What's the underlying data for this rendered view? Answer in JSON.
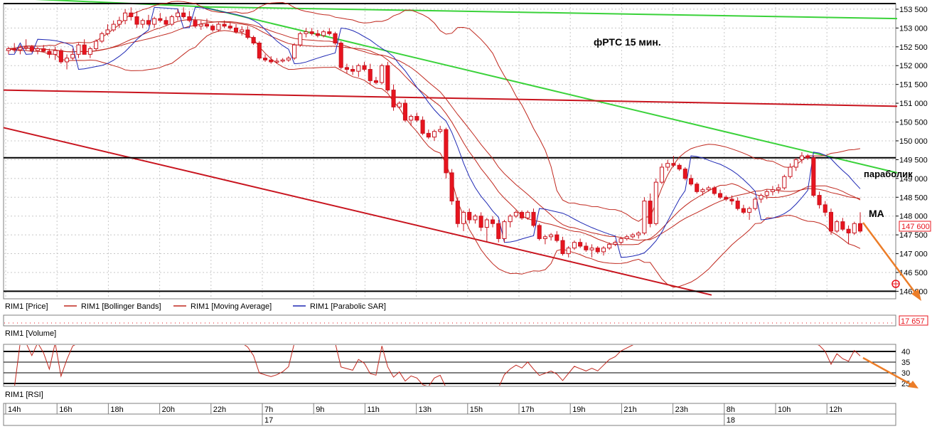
{
  "chart_data": {
    "type": "candlestick",
    "title": "фРТС   15 мин.",
    "price_axis": {
      "ylim": [
        145800,
        153650
      ],
      "ticks": [
        153500,
        153000,
        152500,
        152000,
        151500,
        151000,
        150500,
        150000,
        149500,
        149000,
        148500,
        148000,
        147500,
        147000,
        146500,
        146000
      ],
      "tick_labels": [
        "153 500",
        "153 000",
        "152 500",
        "152 000",
        "151 500",
        "151 000",
        "150 500",
        "150 000",
        "149 500",
        "149 000",
        "148 500",
        "148 000",
        "147 500",
        "147 000",
        "146 500",
        "146 000"
      ],
      "last_price_label": "147 600",
      "last_price": 147600
    },
    "time_axis": {
      "hour_labels": [
        "14h",
        "16h",
        "18h",
        "20h",
        "22h",
        "7h",
        "9h",
        "11h",
        "13h",
        "15h",
        "17h",
        "19h",
        "21h",
        "23h",
        "8h",
        "10h",
        "12h"
      ],
      "day_labels": [
        "17",
        "18"
      ]
    },
    "candles_ohlc": [
      [
        152400,
        152500,
        152300,
        152450
      ],
      [
        152450,
        152600,
        152350,
        152420
      ],
      [
        152420,
        152550,
        152300,
        152480
      ],
      [
        152480,
        152700,
        152400,
        152500
      ],
      [
        152500,
        152550,
        152350,
        152400
      ],
      [
        152400,
        152500,
        152300,
        152450
      ],
      [
        152450,
        152550,
        152350,
        152380
      ],
      [
        152380,
        152450,
        152200,
        152300
      ],
      [
        152300,
        152500,
        152150,
        152400
      ],
      [
        152400,
        152450,
        152050,
        152100
      ],
      [
        152100,
        152300,
        151900,
        152200
      ],
      [
        152200,
        152450,
        152150,
        152300
      ],
      [
        152300,
        152600,
        152200,
        152550
      ],
      [
        152550,
        152700,
        152400,
        152300
      ],
      [
        152300,
        152500,
        152200,
        152450
      ],
      [
        152450,
        152700,
        152400,
        152650
      ],
      [
        152650,
        152900,
        152600,
        152850
      ],
      [
        152850,
        153100,
        152800,
        152950
      ],
      [
        152950,
        153200,
        152900,
        153100
      ],
      [
        153100,
        153300,
        153000,
        153200
      ],
      [
        153200,
        153500,
        153100,
        153400
      ],
      [
        153400,
        153550,
        153200,
        153300
      ],
      [
        153300,
        153450,
        153000,
        153100
      ],
      [
        153100,
        153250,
        153000,
        153200
      ],
      [
        153200,
        153350,
        153050,
        153100
      ],
      [
        153100,
        153300,
        153000,
        153250
      ],
      [
        153250,
        153400,
        153150,
        153200
      ],
      [
        153200,
        153300,
        153050,
        153100
      ],
      [
        153100,
        153350,
        153050,
        153300
      ],
      [
        153300,
        153500,
        153200,
        153400
      ],
      [
        153400,
        153550,
        153250,
        153300
      ],
      [
        153300,
        153450,
        153150,
        153200
      ],
      [
        153200,
        153300,
        153000,
        153050
      ],
      [
        153050,
        153200,
        152950,
        153100
      ],
      [
        153100,
        153250,
        153000,
        153050
      ],
      [
        153050,
        153100,
        152900,
        152950
      ],
      [
        152950,
        153150,
        152900,
        153100
      ],
      [
        153100,
        153200,
        153000,
        153050
      ],
      [
        153050,
        153150,
        152950,
        153000
      ],
      [
        153000,
        153100,
        152850,
        152900
      ],
      [
        152900,
        153050,
        152800,
        152950
      ],
      [
        152950,
        153050,
        152700,
        152750
      ],
      [
        152750,
        152800,
        152550,
        152600
      ],
      [
        152600,
        152650,
        152150,
        152200
      ],
      [
        152200,
        152300,
        152100,
        152150
      ],
      [
        152150,
        152250,
        152050,
        152100
      ],
      [
        152100,
        152200,
        152050,
        152120
      ],
      [
        152120,
        152200,
        152080,
        152150
      ],
      [
        152150,
        152250,
        152100,
        152200
      ],
      [
        152200,
        152600,
        152150,
        152550
      ],
      [
        152550,
        152900,
        152500,
        152850
      ],
      [
        152850,
        153000,
        152750,
        152900
      ],
      [
        152900,
        153000,
        152800,
        152850
      ],
      [
        152850,
        152950,
        152750,
        152800
      ],
      [
        152800,
        152950,
        152750,
        152900
      ],
      [
        152900,
        153000,
        152800,
        152850
      ],
      [
        152850,
        152900,
        152550,
        152600
      ],
      [
        152600,
        152650,
        151900,
        151950
      ],
      [
        151950,
        152050,
        151800,
        151900
      ],
      [
        151900,
        152000,
        151750,
        151850
      ],
      [
        151850,
        152050,
        151700,
        152000
      ],
      [
        152000,
        152100,
        151850,
        151900
      ],
      [
        151900,
        152050,
        151500,
        151600
      ],
      [
        151600,
        151700,
        151500,
        151550
      ],
      [
        151550,
        152050,
        151500,
        152000
      ],
      [
        152000,
        152100,
        151300,
        151350
      ],
      [
        151350,
        151500,
        150800,
        150900
      ],
      [
        150900,
        151050,
        150850,
        151000
      ],
      [
        151000,
        151100,
        150500,
        150550
      ],
      [
        150550,
        150700,
        150400,
        150650
      ],
      [
        150650,
        150750,
        150500,
        150550
      ],
      [
        150550,
        150650,
        150150,
        150200
      ],
      [
        150200,
        150300,
        150050,
        150100
      ],
      [
        150100,
        150300,
        150000,
        150250
      ],
      [
        150250,
        150400,
        150200,
        150300
      ],
      [
        150300,
        150350,
        149000,
        149150
      ],
      [
        149150,
        149250,
        148300,
        148400
      ],
      [
        148400,
        148500,
        147700,
        147800
      ],
      [
        147800,
        148150,
        147600,
        148100
      ],
      [
        148100,
        148200,
        147800,
        147900
      ],
      [
        147900,
        148050,
        147800,
        148000
      ],
      [
        148000,
        148100,
        147600,
        147700
      ],
      [
        147700,
        147950,
        147300,
        147900
      ],
      [
        147900,
        148000,
        147700,
        147800
      ],
      [
        147800,
        147900,
        147300,
        147400
      ],
      [
        147400,
        147900,
        147300,
        147850
      ],
      [
        147850,
        148050,
        147700,
        148000
      ],
      [
        148000,
        148150,
        147950,
        148100
      ],
      [
        148100,
        148150,
        147900,
        147950
      ],
      [
        147950,
        148150,
        147900,
        148100
      ],
      [
        148100,
        148200,
        147700,
        147750
      ],
      [
        147750,
        147800,
        147350,
        147400
      ],
      [
        147400,
        147500,
        147250,
        147450
      ],
      [
        147450,
        147550,
        147350,
        147500
      ],
      [
        147500,
        147600,
        147300,
        147350
      ],
      [
        147350,
        147450,
        146950,
        147000
      ],
      [
        147000,
        147200,
        146900,
        147150
      ],
      [
        147150,
        147350,
        147100,
        147300
      ],
      [
        147300,
        147400,
        147150,
        147200
      ],
      [
        147200,
        147300,
        147050,
        147100
      ],
      [
        147100,
        147250,
        146900,
        147150
      ],
      [
        147150,
        147200,
        147000,
        147050
      ],
      [
        147050,
        147200,
        146950,
        147150
      ],
      [
        147150,
        147300,
        147100,
        147250
      ],
      [
        147250,
        147350,
        147200,
        147300
      ],
      [
        147300,
        147450,
        147250,
        147400
      ],
      [
        147400,
        147500,
        147350,
        147450
      ],
      [
        147450,
        147550,
        147400,
        147500
      ],
      [
        147500,
        147600,
        147400,
        147550
      ],
      [
        147550,
        148500,
        147500,
        148400
      ],
      [
        148400,
        148600,
        147700,
        147800
      ],
      [
        147800,
        149000,
        147750,
        148900
      ],
      [
        148900,
        149400,
        148850,
        149300
      ],
      [
        149300,
        149500,
        149200,
        149400
      ],
      [
        149400,
        149600,
        149300,
        149350
      ],
      [
        149350,
        149400,
        149200,
        149250
      ],
      [
        149250,
        149300,
        148950,
        149000
      ],
      [
        149000,
        149100,
        148800,
        148850
      ],
      [
        148850,
        148900,
        148600,
        148650
      ],
      [
        148650,
        148750,
        148550,
        148700
      ],
      [
        148700,
        148800,
        148650,
        148750
      ],
      [
        148750,
        148800,
        148550,
        148600
      ],
      [
        148600,
        148700,
        148450,
        148500
      ],
      [
        148500,
        148550,
        148400,
        148450
      ],
      [
        148450,
        148550,
        148300,
        148400
      ],
      [
        148400,
        148500,
        148150,
        148200
      ],
      [
        148200,
        148300,
        148050,
        148100
      ],
      [
        148100,
        148250,
        147900,
        148200
      ],
      [
        148200,
        148500,
        148150,
        148450
      ],
      [
        148450,
        148600,
        148350,
        148550
      ],
      [
        148550,
        148700,
        148450,
        148650
      ],
      [
        148650,
        148800,
        148550,
        148700
      ],
      [
        148700,
        148850,
        148600,
        148750
      ],
      [
        148750,
        149100,
        148700,
        149050
      ],
      [
        149050,
        149400,
        149000,
        149300
      ],
      [
        149300,
        149550,
        149200,
        149500
      ],
      [
        149500,
        149700,
        149400,
        149600
      ],
      [
        149600,
        149650,
        149500,
        149550
      ],
      [
        149550,
        149600,
        148500,
        148550
      ],
      [
        148550,
        148650,
        148200,
        148300
      ],
      [
        148300,
        148400,
        148000,
        148100
      ],
      [
        148100,
        148200,
        147500,
        147600
      ],
      [
        147600,
        147900,
        147550,
        147850
      ],
      [
        147850,
        147950,
        147600,
        147650
      ],
      [
        147650,
        147750,
        147250,
        147550
      ],
      [
        147550,
        147850,
        147500,
        147800
      ],
      [
        147800,
        148100,
        147550,
        147600
      ]
    ],
    "lines": {
      "green_upper": {
        "name": "",
        "points": [
          [
            0,
            153800
          ],
          [
            290,
            153560
          ],
          [
            1257,
            153250
          ]
        ]
      },
      "green_trend": {
        "name": "",
        "points": [
          [
            280,
            153560
          ],
          [
            1257,
            149150
          ]
        ]
      },
      "red_level": {
        "name": "",
        "points": [
          [
            0,
            151350
          ],
          [
            1257,
            150920
          ]
        ]
      },
      "red_channel": {
        "name": "",
        "points": [
          [
            0,
            150350
          ],
          [
            996,
            145900
          ]
        ]
      },
      "black_top": {
        "name": "",
        "value": 153650
      },
      "black_resistance": {
        "name": "",
        "value": 149550
      },
      "black_support": {
        "name": "",
        "value": 146000
      }
    },
    "annotations": {
      "parabolic": "параболик",
      "ma": "МА"
    },
    "legend": {
      "price": "RIM1 [Price]",
      "bollinger": "RIM1 [Bollinger Bands]",
      "moving_average": "RIM1 [Moving Average]",
      "parabolic_sar": "RIM1 [Parabolic SAR]"
    },
    "volume_panel": {
      "label": "RIM1 [Volume]",
      "last_value_label": "17 657"
    },
    "rsi_panel": {
      "label": "RIM1 [RSI]",
      "levels": [
        40,
        35,
        30,
        25
      ],
      "level_labels": [
        "40",
        "35",
        "30",
        "25"
      ],
      "ylim": [
        24,
        43
      ]
    },
    "colors": {
      "candle_up": "#ffffff",
      "candle_down": "#e8141e",
      "candle_outline": "#c8141e",
      "bollinger": "#c0281e",
      "moving_average": "#c0281e",
      "parabolic_sar": "#1e28b4",
      "trend_green": "#3ad23a",
      "level_red": "#c8141e",
      "arrow": "#ec7d28",
      "grid": "#c8c8c8",
      "last_price_box": "#e8141e"
    }
  }
}
